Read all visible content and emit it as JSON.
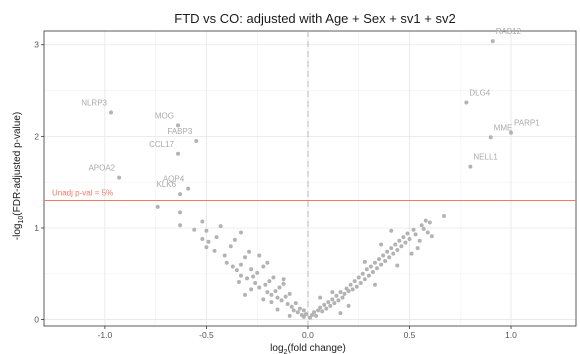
{
  "chart_data": {
    "type": "scatter",
    "title": "FTD vs CO: adjusted with Age + Sex + sv1 + sv2",
    "xlabel": {
      "pre": "log",
      "sub": "2",
      "post": "(fold change)"
    },
    "ylabel": {
      "pre": "-log",
      "sub": "10",
      "post": "(FDR-adjusted p-value)"
    },
    "xlim": [
      -1.3,
      1.32
    ],
    "ylim": [
      -0.07,
      3.15
    ],
    "x_ticks": [
      -1.0,
      -0.5,
      0.0,
      0.5,
      1.0
    ],
    "x_tick_labels": [
      "-1.0",
      "-0.5",
      "0.0",
      "0.5",
      "1.0"
    ],
    "y_ticks": [
      0,
      1,
      2,
      3
    ],
    "y_tick_labels": [
      "0",
      "1",
      "2",
      "3"
    ],
    "grid": true,
    "vertical_reference_x": 0,
    "threshold": {
      "y": 1.3,
      "label": "Unadj p-val = 5%",
      "color": "#f07a6a"
    },
    "point_color": "#b3b3b3",
    "labeled_points": [
      {
        "label": "RAB12",
        "x": 0.91,
        "y": 3.04
      },
      {
        "label": "DLG4",
        "x": 0.78,
        "y": 2.37
      },
      {
        "label": "PARP1",
        "x": 1.0,
        "y": 2.04
      },
      {
        "label": "MME",
        "x": 0.9,
        "y": 1.99
      },
      {
        "label": "NELL1",
        "x": 0.8,
        "y": 1.67
      },
      {
        "label": "NLRP3",
        "x": -0.97,
        "y": 2.26
      },
      {
        "label": "MOG",
        "x": -0.64,
        "y": 2.12
      },
      {
        "label": "FABP3",
        "x": -0.55,
        "y": 1.95
      },
      {
        "label": "CCL17",
        "x": -0.64,
        "y": 1.81
      },
      {
        "label": "APOA2",
        "x": -0.93,
        "y": 1.55
      },
      {
        "label": "AQP4",
        "x": -0.59,
        "y": 1.43
      },
      {
        "label": "KLK6",
        "x": -0.63,
        "y": 1.37
      }
    ],
    "points": [
      {
        "x": -0.74,
        "y": 1.23
      },
      {
        "x": -0.63,
        "y": 1.17
      },
      {
        "x": -0.63,
        "y": 1.03
      },
      {
        "x": -0.52,
        "y": 1.07
      },
      {
        "x": -0.5,
        "y": 0.97
      },
      {
        "x": -0.52,
        "y": 0.88
      },
      {
        "x": -0.49,
        "y": 0.85
      },
      {
        "x": -0.43,
        "y": 1.02
      },
      {
        "x": -0.5,
        "y": 0.79
      },
      {
        "x": -0.46,
        "y": 0.75
      },
      {
        "x": -0.41,
        "y": 0.7
      },
      {
        "x": -0.38,
        "y": 0.8
      },
      {
        "x": -0.36,
        "y": 0.87
      },
      {
        "x": -0.33,
        "y": 0.95
      },
      {
        "x": -0.4,
        "y": 0.62
      },
      {
        "x": -0.37,
        "y": 0.58
      },
      {
        "x": -0.35,
        "y": 0.54
      },
      {
        "x": -0.33,
        "y": 0.6
      },
      {
        "x": -0.31,
        "y": 0.68
      },
      {
        "x": -0.29,
        "y": 0.74
      },
      {
        "x": -0.28,
        "y": 0.55
      },
      {
        "x": -0.33,
        "y": 0.48
      },
      {
        "x": -0.3,
        "y": 0.45
      },
      {
        "x": -0.27,
        "y": 0.47
      },
      {
        "x": -0.25,
        "y": 0.51
      },
      {
        "x": -0.22,
        "y": 0.58
      },
      {
        "x": -0.2,
        "y": 0.62
      },
      {
        "x": -0.26,
        "y": 0.4
      },
      {
        "x": -0.24,
        "y": 0.35
      },
      {
        "x": -0.21,
        "y": 0.38
      },
      {
        "x": -0.19,
        "y": 0.42
      },
      {
        "x": -0.17,
        "y": 0.46
      },
      {
        "x": -0.2,
        "y": 0.3
      },
      {
        "x": -0.18,
        "y": 0.27
      },
      {
        "x": -0.16,
        "y": 0.31
      },
      {
        "x": -0.14,
        "y": 0.35
      },
      {
        "x": -0.12,
        "y": 0.39
      },
      {
        "x": -0.15,
        "y": 0.24
      },
      {
        "x": -0.13,
        "y": 0.21
      },
      {
        "x": -0.11,
        "y": 0.25
      },
      {
        "x": -0.09,
        "y": 0.28
      },
      {
        "x": -0.1,
        "y": 0.17
      },
      {
        "x": -0.08,
        "y": 0.14
      },
      {
        "x": -0.06,
        "y": 0.18
      },
      {
        "x": -0.07,
        "y": 0.1
      },
      {
        "x": -0.05,
        "y": 0.08
      },
      {
        "x": -0.04,
        "y": 0.12
      },
      {
        "x": -0.03,
        "y": 0.05
      },
      {
        "x": -0.02,
        "y": 0.03
      },
      {
        "x": -0.01,
        "y": 0.06
      },
      {
        "x": -0.12,
        "y": 0.44
      },
      {
        "x": -0.15,
        "y": 0.11
      },
      {
        "x": -0.18,
        "y": 0.19
      },
      {
        "x": -0.22,
        "y": 0.22
      },
      {
        "x": -0.28,
        "y": 0.33
      },
      {
        "x": -0.34,
        "y": 0.41
      },
      {
        "x": -0.45,
        "y": 0.9
      },
      {
        "x": -0.56,
        "y": 0.98
      },
      {
        "x": -0.24,
        "y": 0.7
      },
      {
        "x": -0.31,
        "y": 0.27
      },
      {
        "x": -0.09,
        "y": 0.04
      },
      {
        "x": -0.02,
        "y": 0.1
      },
      {
        "x": 0.01,
        "y": 0.02
      },
      {
        "x": 0.02,
        "y": 0.05
      },
      {
        "x": 0.03,
        "y": 0.08
      },
      {
        "x": 0.04,
        "y": 0.04
      },
      {
        "x": 0.05,
        "y": 0.1
      },
      {
        "x": 0.06,
        "y": 0.13
      },
      {
        "x": 0.07,
        "y": 0.09
      },
      {
        "x": 0.08,
        "y": 0.16
      },
      {
        "x": 0.09,
        "y": 0.12
      },
      {
        "x": 0.1,
        "y": 0.19
      },
      {
        "x": 0.11,
        "y": 0.15
      },
      {
        "x": 0.12,
        "y": 0.22
      },
      {
        "x": 0.13,
        "y": 0.18
      },
      {
        "x": 0.14,
        "y": 0.26
      },
      {
        "x": 0.15,
        "y": 0.21
      },
      {
        "x": 0.16,
        "y": 0.3
      },
      {
        "x": 0.17,
        "y": 0.24
      },
      {
        "x": 0.18,
        "y": 0.28
      },
      {
        "x": 0.19,
        "y": 0.34
      },
      {
        "x": 0.2,
        "y": 0.31
      },
      {
        "x": 0.21,
        "y": 0.38
      },
      {
        "x": 0.22,
        "y": 0.33
      },
      {
        "x": 0.23,
        "y": 0.42
      },
      {
        "x": 0.24,
        "y": 0.36
      },
      {
        "x": 0.25,
        "y": 0.46
      },
      {
        "x": 0.26,
        "y": 0.4
      },
      {
        "x": 0.27,
        "y": 0.5
      },
      {
        "x": 0.28,
        "y": 0.44
      },
      {
        "x": 0.29,
        "y": 0.55
      },
      {
        "x": 0.3,
        "y": 0.48
      },
      {
        "x": 0.31,
        "y": 0.58
      },
      {
        "x": 0.32,
        "y": 0.52
      },
      {
        "x": 0.33,
        "y": 0.62
      },
      {
        "x": 0.34,
        "y": 0.56
      },
      {
        "x": 0.35,
        "y": 0.66
      },
      {
        "x": 0.36,
        "y": 0.6
      },
      {
        "x": 0.37,
        "y": 0.7
      },
      {
        "x": 0.38,
        "y": 0.64
      },
      {
        "x": 0.39,
        "y": 0.74
      },
      {
        "x": 0.4,
        "y": 0.68
      },
      {
        "x": 0.41,
        "y": 0.78
      },
      {
        "x": 0.42,
        "y": 0.72
      },
      {
        "x": 0.43,
        "y": 0.82
      },
      {
        "x": 0.44,
        "y": 0.76
      },
      {
        "x": 0.45,
        "y": 0.86
      },
      {
        "x": 0.46,
        "y": 0.8
      },
      {
        "x": 0.47,
        "y": 0.9
      },
      {
        "x": 0.48,
        "y": 0.84
      },
      {
        "x": 0.49,
        "y": 0.94
      },
      {
        "x": 0.5,
        "y": 0.88
      },
      {
        "x": 0.51,
        "y": 0.72
      },
      {
        "x": 0.52,
        "y": 0.98
      },
      {
        "x": 0.53,
        "y": 0.93
      },
      {
        "x": 0.54,
        "y": 0.78
      },
      {
        "x": 0.55,
        "y": 0.86
      },
      {
        "x": 0.56,
        "y": 1.03
      },
      {
        "x": 0.57,
        "y": 0.99
      },
      {
        "x": 0.58,
        "y": 1.08
      },
      {
        "x": 0.59,
        "y": 0.95
      },
      {
        "x": 0.6,
        "y": 1.06
      },
      {
        "x": 0.61,
        "y": 0.91
      },
      {
        "x": 0.67,
        "y": 1.13
      },
      {
        "x": 0.12,
        "y": 0.3
      },
      {
        "x": 0.2,
        "y": 0.15
      },
      {
        "x": 0.33,
        "y": 0.38
      },
      {
        "x": 0.36,
        "y": 0.82
      },
      {
        "x": 0.28,
        "y": 0.63
      },
      {
        "x": 0.44,
        "y": 0.59
      },
      {
        "x": 0.06,
        "y": 0.24
      },
      {
        "x": 0.16,
        "y": 0.07
      },
      {
        "x": 0.41,
        "y": 0.97
      }
    ]
  }
}
